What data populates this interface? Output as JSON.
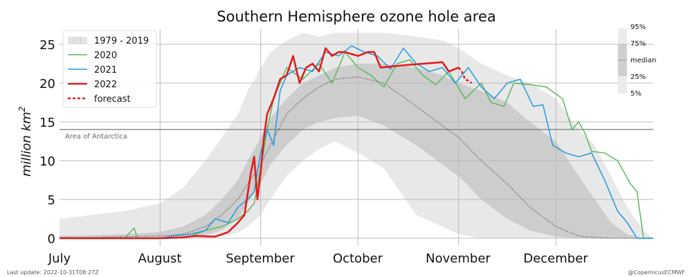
{
  "chart_data": {
    "type": "line",
    "title": "Southern Hemisphere ozone hole area",
    "xlabel": "",
    "ylabel": "million km²",
    "ylim": [
      0,
      27
    ],
    "xlim_days_from_jul1": [
      0,
      183
    ],
    "yticks": [
      0,
      5,
      10,
      15,
      20,
      25
    ],
    "xticks": [
      {
        "label": "July",
        "day": 0
      },
      {
        "label": "August",
        "day": 31
      },
      {
        "label": "September",
        "day": 62
      },
      {
        "label": "October",
        "day": 92
      },
      {
        "label": "November",
        "day": 123
      },
      {
        "label": "December",
        "day": 153
      }
    ],
    "grid": true,
    "reference_line": {
      "label": "Area of Antarctica",
      "value": 14.0,
      "color": "#777777"
    },
    "legend": {
      "position": "upper left",
      "entries": [
        {
          "label": "1979 - 2019",
          "kind": "band",
          "color": "#e3e3e3"
        },
        {
          "label": "2020",
          "kind": "line",
          "color": "#5cb85c"
        },
        {
          "label": "2021",
          "kind": "line",
          "color": "#1f9ae0"
        },
        {
          "label": "2022",
          "kind": "line",
          "color": "#e41a1c"
        },
        {
          "label": "forecast",
          "kind": "dashed",
          "color": "#e41a1c"
        }
      ]
    },
    "percentile_legend": [
      "95%",
      "75%",
      "median",
      "25%",
      "5%"
    ],
    "x_days": [
      0,
      10,
      20,
      31,
      38,
      45,
      50,
      55,
      58,
      62,
      65,
      70,
      75,
      80,
      85,
      92,
      100,
      110,
      118,
      123,
      130,
      138,
      145,
      153,
      160,
      165,
      170,
      175,
      180,
      183
    ],
    "bands": {
      "p95": [
        2.5,
        3.0,
        3.5,
        4.5,
        6.5,
        10,
        13,
        16,
        19,
        22,
        24,
        25.5,
        26.5,
        26,
        26.5,
        26.5,
        26.5,
        26,
        25.5,
        24.5,
        22.5,
        21,
        20,
        18,
        14,
        12,
        8,
        4,
        1,
        0
      ],
      "p75": [
        0.3,
        0.4,
        0.5,
        0.8,
        1.5,
        3,
        5,
        7.5,
        10,
        13,
        15.5,
        18,
        20,
        21,
        22,
        22.5,
        22.5,
        22,
        21,
        20,
        19,
        17.5,
        15,
        12.5,
        8,
        5,
        2,
        0.5,
        0,
        0
      ],
      "median": [
        0.1,
        0.1,
        0.2,
        0.3,
        0.5,
        1.5,
        3,
        5,
        7,
        9.5,
        12,
        16,
        18,
        19.5,
        20.5,
        20.8,
        20,
        17,
        14.5,
        13,
        10,
        7,
        4,
        1.5,
        0.3,
        0.1,
        0,
        0,
        0,
        0
      ],
      "p25": [
        0,
        0,
        0,
        0,
        0.1,
        0.4,
        1,
        2.5,
        4.5,
        7,
        9.5,
        12,
        14,
        15,
        15.5,
        15.8,
        14.5,
        12,
        9.5,
        8,
        5,
        2.5,
        1,
        0.2,
        0,
        0,
        0,
        0,
        0,
        0
      ],
      "p5": [
        0,
        0,
        0,
        0,
        0,
        0,
        0.2,
        0.7,
        1.5,
        3,
        5,
        8,
        10,
        11.5,
        12.5,
        11,
        9,
        3,
        1.5,
        0.5,
        0,
        0,
        0,
        0,
        0,
        0,
        0,
        0,
        0,
        0
      ]
    },
    "series": [
      {
        "name": "2020",
        "color": "#5cb85c",
        "x": [
          0,
          20,
          23,
          24,
          26,
          31,
          40,
          45,
          50,
          55,
          58,
          60,
          62,
          64,
          66,
          70,
          75,
          80,
          84,
          88,
          92,
          96,
          100,
          104,
          108,
          112,
          116,
          120,
          125,
          130,
          133,
          137,
          140,
          145,
          150,
          155,
          158,
          160,
          162,
          164,
          168,
          172,
          176,
          178,
          180,
          183
        ],
        "values": [
          0,
          0,
          1.3,
          0,
          0,
          0,
          0.2,
          1.0,
          1.5,
          2.5,
          3.5,
          4.5,
          9,
          14,
          18,
          22,
          20.5,
          22.5,
          20,
          24,
          22,
          21,
          19.5,
          22.5,
          23,
          21,
          19.8,
          21.5,
          18,
          20,
          17.5,
          17,
          20,
          19.8,
          19.5,
          18,
          14,
          15,
          13.5,
          11.2,
          11,
          10,
          7,
          6,
          0,
          0
        ]
      },
      {
        "name": "2021",
        "color": "#1f9ae0",
        "x": [
          0,
          31,
          35,
          40,
          45,
          48,
          52,
          55,
          58,
          60,
          62,
          64,
          66,
          68,
          70,
          74,
          78,
          82,
          86,
          90,
          94,
          98,
          102,
          106,
          110,
          114,
          118,
          122,
          126,
          130,
          134,
          138,
          142,
          146,
          149,
          152,
          156,
          160,
          164,
          168,
          172,
          175,
          178,
          180,
          183
        ],
        "values": [
          0,
          0,
          0.3,
          0.5,
          1.0,
          2.5,
          2.0,
          4.0,
          5.0,
          6.0,
          11,
          14,
          12,
          19,
          21,
          22,
          21.5,
          24,
          23.5,
          24.8,
          24,
          23.5,
          21.8,
          24.5,
          22.5,
          21.5,
          22,
          20,
          22,
          19.5,
          18,
          20,
          20.5,
          17,
          17.2,
          12,
          11,
          10.5,
          11,
          7.5,
          3.5,
          2,
          0,
          0,
          0
        ]
      },
      {
        "name": "2022",
        "color": "#e41a1c",
        "x": [
          0,
          31,
          38,
          42,
          48,
          52,
          55,
          57,
          59,
          60,
          61,
          62,
          63,
          64,
          66,
          68,
          70,
          72,
          74,
          76,
          78,
          80,
          82,
          84,
          86,
          88,
          92,
          95,
          97,
          99,
          106,
          118,
          120,
          123
        ],
        "values": [
          0,
          0,
          0.1,
          0.3,
          0.2,
          0.8,
          2.0,
          3.0,
          8.5,
          10.5,
          5.0,
          8.5,
          13,
          16,
          18,
          20.5,
          21,
          23.5,
          20,
          22,
          22.5,
          21.5,
          24.5,
          23.5,
          24,
          24,
          23.5,
          24,
          24,
          22,
          22.3,
          22.7,
          21.5,
          22
        ]
      },
      {
        "name": "forecast",
        "color": "#e41a1c",
        "dashed": true,
        "x": [
          123,
          124,
          125,
          126,
          127
        ],
        "values": [
          22,
          21.5,
          20.5,
          20.3,
          20
        ]
      }
    ]
  },
  "header": {
    "title": "Southern Hemisphere ozone hole area"
  },
  "axes": {
    "ylabel_main": "million km",
    "ylabel_sup": "2",
    "yticks": [
      "0",
      "5",
      "10",
      "15",
      "20",
      "25"
    ],
    "xticks": [
      "July",
      "August",
      "September",
      "October",
      "November",
      "December"
    ],
    "antarctica_label": "Area of Antarctica"
  },
  "legend": {
    "items": [
      "1979 - 2019",
      "2020",
      "2021",
      "2022",
      "forecast"
    ]
  },
  "percentile_legend": {
    "p95": "95%",
    "p75": "75%",
    "median": "median",
    "p25": "25%",
    "p5": "5%"
  },
  "footer": {
    "last_update": "Last update: 2022-10-31T08:27Z",
    "credit": "@CopernicusECMWF"
  }
}
